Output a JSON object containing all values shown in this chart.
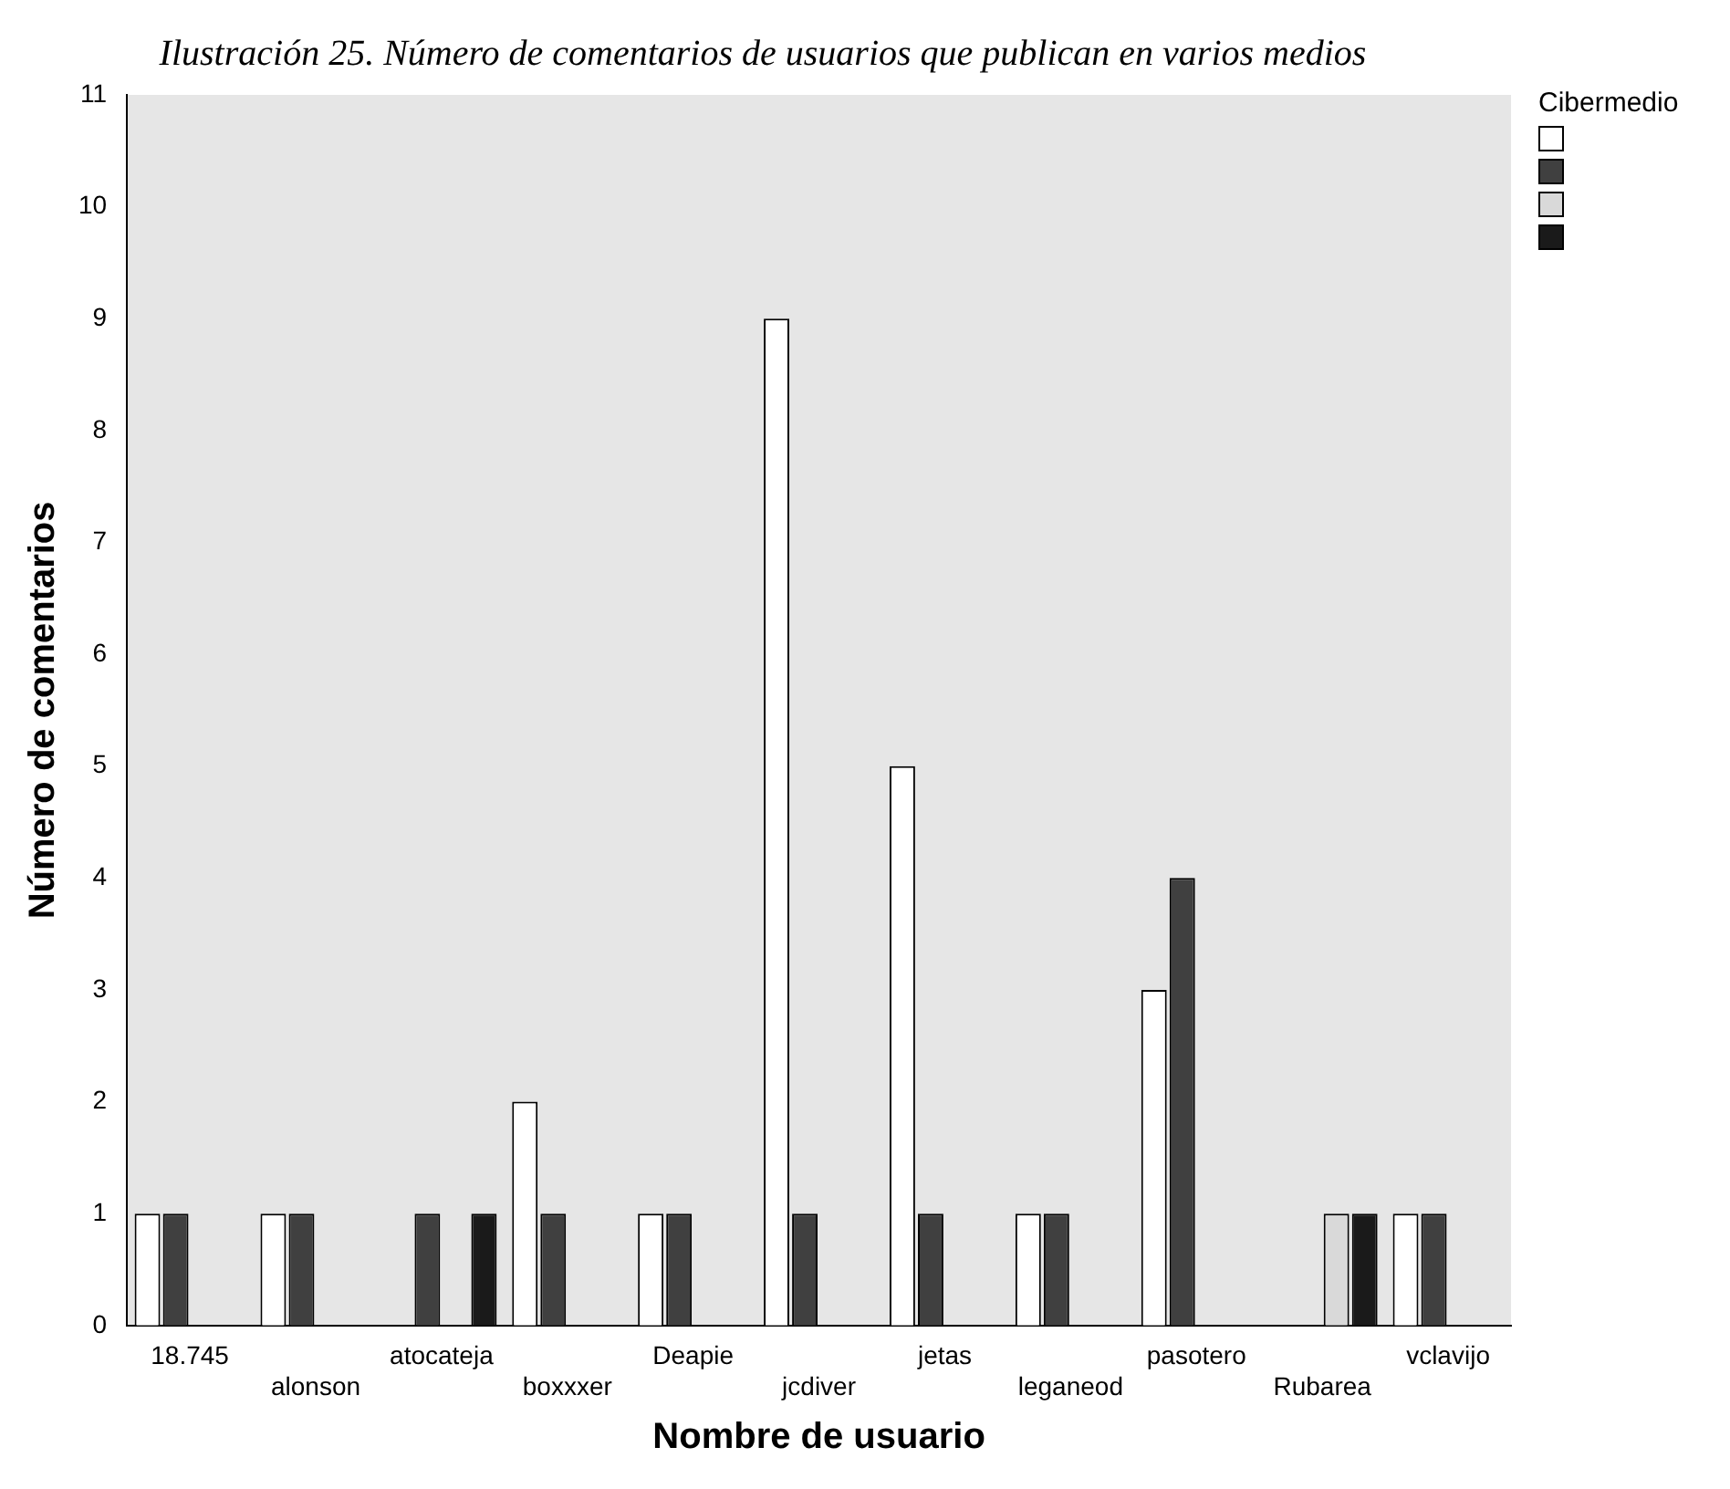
{
  "chart_data": {
    "type": "bar",
    "title": "Ilustración 25. Número de comentarios de usuarios que publican en varios medios",
    "xlabel": "Nombre de usuario",
    "ylabel": "Número de comentarios",
    "legend_title": "Cibermedio",
    "categories": [
      "18.745",
      "alonson",
      "atocateja",
      "boxxxer",
      "Deapie",
      "jcdiver",
      "jetas",
      "leganeod",
      "pasotero",
      "Rubarea",
      "vclavijo"
    ],
    "series": [
      {
        "color": "#ffffff",
        "values": [
          1,
          1,
          null,
          2,
          1,
          9,
          5,
          1,
          3,
          null,
          1
        ]
      },
      {
        "color": "#404040",
        "values": [
          1,
          1,
          1,
          1,
          1,
          1,
          1,
          1,
          4,
          null,
          1
        ]
      },
      {
        "color": "#d9d9d9",
        "values": [
          null,
          null,
          null,
          null,
          null,
          null,
          null,
          null,
          null,
          1,
          null
        ]
      },
      {
        "color": "#1a1a1a",
        "values": [
          null,
          null,
          1,
          null,
          null,
          null,
          null,
          null,
          null,
          1,
          null
        ]
      }
    ],
    "ylim": [
      0,
      11
    ],
    "yticks": [
      0,
      1,
      2,
      3,
      4,
      5,
      6,
      7,
      8,
      9,
      10,
      11
    ],
    "grid": false
  }
}
